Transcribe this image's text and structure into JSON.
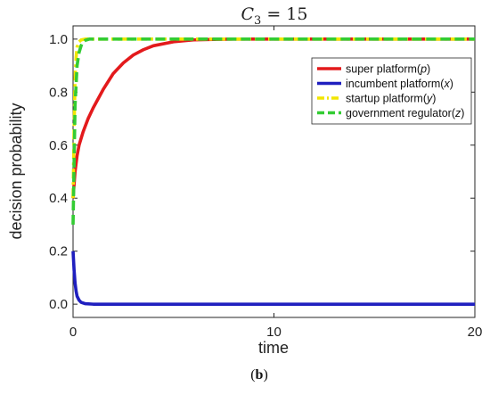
{
  "chart_data": {
    "type": "line",
    "title_parts": {
      "base": "C",
      "sub": "3",
      "rest": " = 15"
    },
    "xlabel": "time",
    "ylabel": "decision probability",
    "xlim": [
      0,
      20
    ],
    "ylim": [
      -0.05,
      1.05
    ],
    "xticks": [
      0,
      10,
      20
    ],
    "xtick_labels": [
      "0",
      "10",
      "20"
    ],
    "yticks": [
      0,
      0.2,
      0.4,
      0.6,
      0.8,
      1.0
    ],
    "ytick_labels": [
      "0.0",
      "0.2",
      "0.4",
      "0.6",
      "0.8",
      "1.0"
    ],
    "grid": false,
    "legend_placement": "top-right",
    "series": [
      {
        "name_prefix": "super platform(",
        "name_var": "p",
        "name_suffix": ")",
        "color": "#e31a1c",
        "style": "solid",
        "x": [
          0,
          0.1,
          0.2,
          0.3,
          0.5,
          0.75,
          1,
          1.5,
          2,
          2.5,
          3,
          3.5,
          4,
          5,
          6,
          7,
          8,
          10,
          12,
          15,
          20
        ],
        "y": [
          0.4,
          0.5,
          0.56,
          0.6,
          0.65,
          0.7,
          0.74,
          0.81,
          0.87,
          0.91,
          0.94,
          0.96,
          0.975,
          0.99,
          0.997,
          0.999,
          1.0,
          1.0,
          1.0,
          1.0,
          1.0
        ]
      },
      {
        "name_prefix": "incumbent platform(",
        "name_var": "x",
        "name_suffix": ")",
        "color": "#1f1fbf",
        "style": "solid",
        "x": [
          0,
          0.05,
          0.1,
          0.15,
          0.2,
          0.3,
          0.4,
          0.6,
          1,
          2,
          5,
          10,
          20
        ],
        "y": [
          0.2,
          0.13,
          0.08,
          0.05,
          0.03,
          0.015,
          0.007,
          0.002,
          0.0,
          0.0,
          0.0,
          0.0,
          0.0
        ]
      },
      {
        "name_prefix": "startup platform(",
        "name_var": "y",
        "name_suffix": ")",
        "color": "#f2e600",
        "style": "dashdot",
        "x": [
          0,
          0.05,
          0.1,
          0.15,
          0.2,
          0.3,
          0.4,
          0.6,
          1,
          2,
          5,
          10,
          20
        ],
        "y": [
          0.4,
          0.65,
          0.85,
          0.93,
          0.97,
          0.99,
          0.997,
          1.0,
          1.0,
          1.0,
          1.0,
          1.0,
          1.0
        ]
      },
      {
        "name_prefix": "government regulator(",
        "name_var": "z",
        "name_suffix": ")",
        "color": "#33cc33",
        "style": "dashed",
        "x": [
          0,
          0.1,
          0.2,
          0.3,
          0.4,
          0.5,
          0.6,
          0.8,
          1,
          2,
          5,
          10,
          20
        ],
        "y": [
          0.3,
          0.75,
          0.9,
          0.95,
          0.975,
          0.99,
          0.995,
          1.0,
          1.0,
          1.0,
          1.0,
          1.0,
          1.0
        ]
      }
    ]
  },
  "caption": {
    "open": "(",
    "letter": "b",
    "close": ")"
  }
}
